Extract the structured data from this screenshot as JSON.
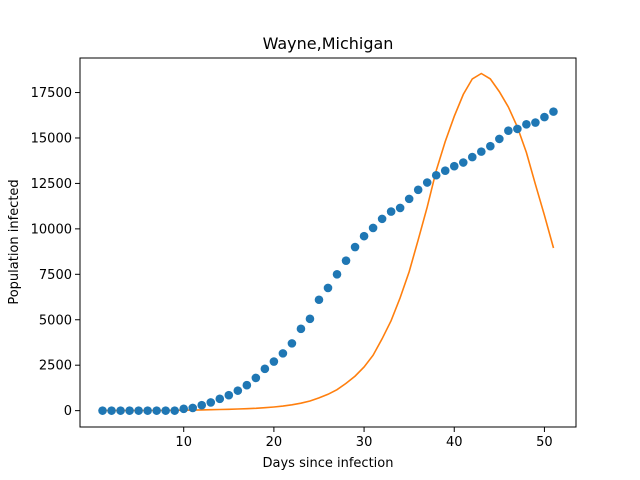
{
  "chart_data": {
    "type": "scatter",
    "title": "Wayne,Michigan",
    "xlabel": "Days since infection",
    "ylabel": "Population infected",
    "xlim": [
      -1.5,
      53.5
    ],
    "ylim": [
      -900,
      19400
    ],
    "x_ticks": [
      {
        "value": 10,
        "label": "10"
      },
      {
        "value": 20,
        "label": "20"
      },
      {
        "value": 30,
        "label": "30"
      },
      {
        "value": 40,
        "label": "40"
      },
      {
        "value": 50,
        "label": "50"
      }
    ],
    "y_ticks": [
      {
        "value": 0,
        "label": "0"
      },
      {
        "value": 2500,
        "label": "2500"
      },
      {
        "value": 5000,
        "label": "5000"
      },
      {
        "value": 7500,
        "label": "7500"
      },
      {
        "value": 10000,
        "label": "10000"
      },
      {
        "value": 12500,
        "label": "12500"
      },
      {
        "value": 15000,
        "label": "15000"
      },
      {
        "value": 17500,
        "label": "17500"
      }
    ],
    "grid": false,
    "legend": "none",
    "series": [
      {
        "kind": "scatter",
        "color": "#1f77b4",
        "x": [
          1,
          2,
          3,
          4,
          5,
          6,
          7,
          8,
          9,
          10,
          11,
          12,
          13,
          14,
          15,
          16,
          17,
          18,
          19,
          20,
          21,
          22,
          23,
          24,
          25,
          26,
          27,
          28,
          29,
          30,
          31,
          32,
          33,
          34,
          35,
          36,
          37,
          38,
          39,
          40,
          41,
          42,
          43,
          44,
          45,
          46,
          47,
          48,
          49,
          50,
          51
        ],
        "y": [
          0,
          0,
          0,
          0,
          0,
          0,
          0,
          0,
          0,
          100,
          150,
          300,
          450,
          650,
          850,
          1100,
          1400,
          1800,
          2300,
          2700,
          3150,
          3700,
          4500,
          5050,
          6100,
          6750,
          7500,
          8250,
          9000,
          9600,
          10050,
          10550,
          10950,
          11150,
          11650,
          12150,
          12550,
          12950,
          13200,
          13450,
          13650,
          13950,
          14250,
          14550,
          14950,
          15400,
          15500,
          15750,
          15850,
          16150,
          16450
        ]
      },
      {
        "kind": "line",
        "color": "#ff7f0e",
        "x": [
          1,
          2,
          3,
          4,
          5,
          6,
          7,
          8,
          9,
          10,
          11,
          12,
          13,
          14,
          15,
          16,
          17,
          18,
          19,
          20,
          21,
          22,
          23,
          24,
          25,
          26,
          27,
          28,
          29,
          30,
          31,
          32,
          33,
          34,
          35,
          36,
          37,
          38,
          39,
          40,
          41,
          42,
          43,
          44,
          45,
          46,
          47,
          48,
          49,
          50,
          51
        ],
        "y": [
          0,
          0,
          0,
          0,
          0,
          5,
          8,
          12,
          18,
          25,
          32,
          40,
          50,
          62,
          75,
          90,
          108,
          130,
          160,
          200,
          250,
          320,
          410,
          530,
          700,
          900,
          1150,
          1500,
          1900,
          2400,
          3050,
          3950,
          4950,
          6200,
          7650,
          9400,
          11200,
          13200,
          14800,
          16200,
          17400,
          18250,
          18550,
          18250,
          17550,
          16700,
          15600,
          14200,
          12450,
          10750,
          8950
        ]
      }
    ]
  }
}
